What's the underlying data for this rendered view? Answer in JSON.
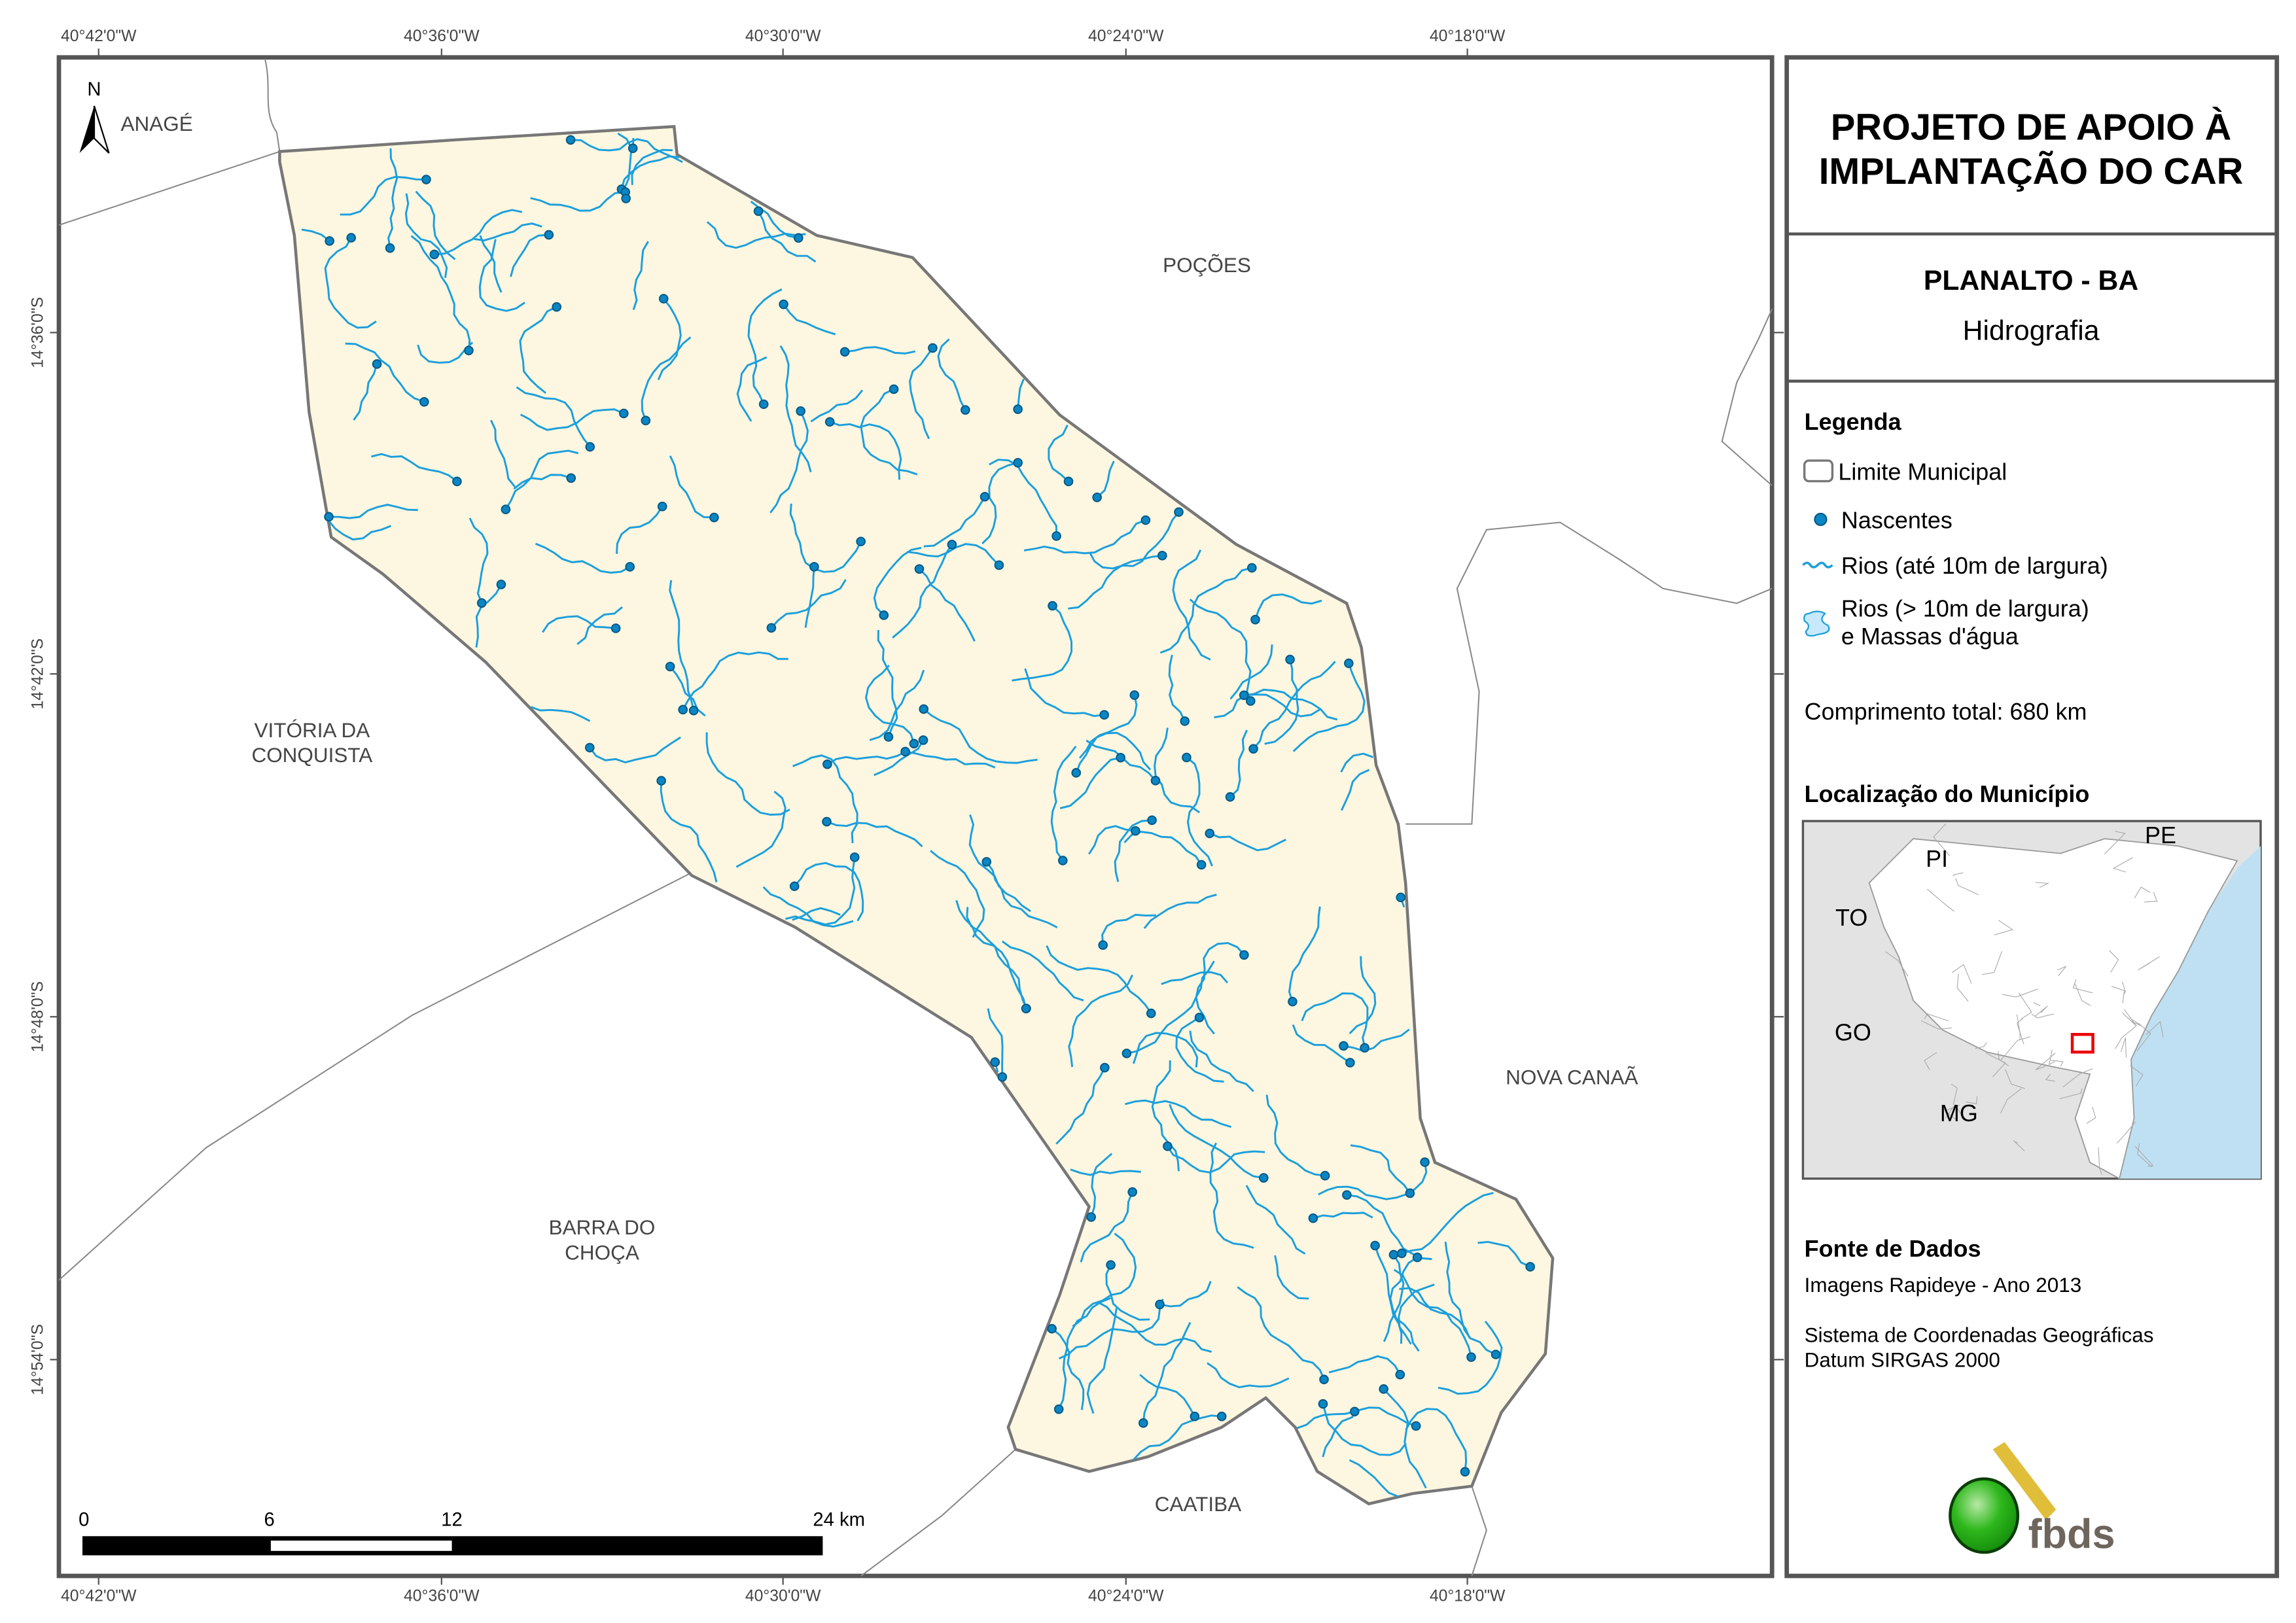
{
  "map": {
    "north_label": "N",
    "coords_top": [
      "40°42'0\"W",
      "40°36'0\"W",
      "40°30'0\"W",
      "40°24'0\"W",
      "40°18'0\"W"
    ],
    "coords_bottom": [
      "40°42'0\"W",
      "40°36'0\"W",
      "40°30'0\"W",
      "40°24'0\"W",
      "40°18'0\"W"
    ],
    "coords_left": [
      "14°36'0\"S",
      "14°42'0\"S",
      "14°48'0\"S",
      "14°54'0\"S"
    ],
    "neighbors": {
      "anage": "ANAGÉ",
      "pocoes": "POÇÕES",
      "vitoria_1": "VITÓRIA DA",
      "vitoria_2": "CONQUISTA",
      "barra_1": "BARRA DO",
      "barra_2": "CHOÇA",
      "nova_canaa": "NOVA CANAÃ",
      "caatiba": "CAATIBA"
    },
    "scale_labels": [
      "0",
      "6",
      "12",
      "24 km"
    ],
    "colors": {
      "municipio_fill": "#fdf6e1",
      "rios": "#1a9fdc",
      "nascentes": "#0b86c4",
      "limite": "#777777"
    }
  },
  "panel": {
    "title_1": "PROJETO DE APOIO À",
    "title_2": "IMPLANTAÇÃO DO CAR",
    "municipio": "PLANALTO - BA",
    "tema": "Hidrografia",
    "legenda_title": "Legenda",
    "legend": [
      "Limite Municipal",
      "Nascentes",
      "Rios (até 10m de largura)",
      "Rios (> 10m de largura)",
      "e Massas d'água"
    ],
    "comprimento": "Comprimento total:  680 km",
    "localizacao_title": "Localização do Município",
    "inset_labels": [
      "PI",
      "PE",
      "TO",
      "GO",
      "MG"
    ],
    "fonte_title": "Fonte de Dados",
    "fonte_1": "Imagens Rapideye - Ano 2013",
    "fonte_2": "Sistema de Coordenadas Geográficas",
    "fonte_3": "Datum SIRGAS 2000",
    "logo_text": "fbds"
  }
}
